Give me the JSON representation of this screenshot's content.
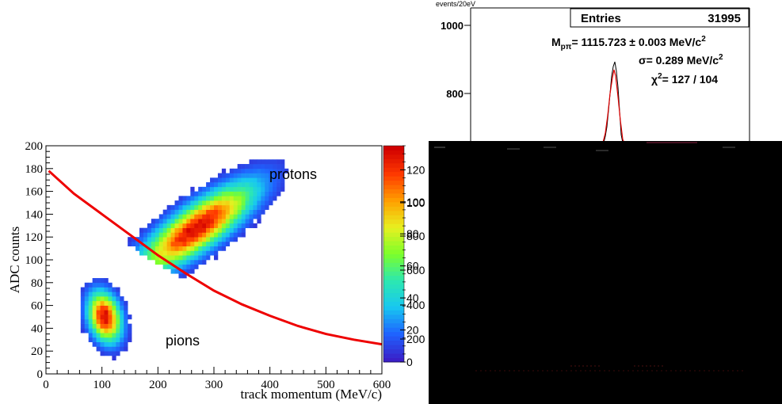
{
  "chart_data": [
    {
      "type": "heatmap",
      "xlabel": "track momentum (MeV/c)",
      "ylabel": "ADC counts",
      "xlim": [
        0,
        600
      ],
      "ylim": [
        0,
        200
      ],
      "xticks": [
        "0",
        "100",
        "200",
        "300",
        "400",
        "500",
        "600"
      ],
      "yticks": [
        "0",
        "20",
        "40",
        "60",
        "80",
        "100",
        "120",
        "140",
        "160",
        "180",
        "200"
      ],
      "annotations": [
        "protons",
        "pions"
      ],
      "colorbar": {
        "range": [
          0,
          135
        ],
        "ticks": [
          "0",
          "20",
          "40",
          "60",
          "80",
          "100",
          "120"
        ],
        "ticks_visible_over_occlusion": [
          "200",
          "400",
          "600",
          "800",
          "100"
        ]
      },
      "colorscale": [
        "#3a1fc8",
        "#1e64ff",
        "#18c8f0",
        "#2ce8b0",
        "#7cff2a",
        "#e8f020",
        "#ffa000",
        "#ff3a00",
        "#d00000"
      ],
      "clusters": [
        {
          "name": "protons",
          "center": [
            270,
            128
          ],
          "peak": 135
        },
        {
          "name": "pions",
          "center": [
            105,
            50
          ],
          "peak": 135
        }
      ],
      "cut_curve": {
        "color": "#ee0000",
        "points": [
          [
            5,
            178
          ],
          [
            50,
            158
          ],
          [
            100,
            140
          ],
          [
            150,
            122
          ],
          [
            200,
            104
          ],
          [
            250,
            88
          ],
          [
            300,
            73
          ],
          [
            350,
            61
          ],
          [
            400,
            51
          ],
          [
            450,
            42
          ],
          [
            500,
            35
          ],
          [
            550,
            30
          ],
          [
            600,
            26
          ]
        ]
      }
    },
    {
      "type": "line",
      "ylabel": "events/20eV",
      "yticks": [
        "1000",
        "800"
      ],
      "stats": {
        "entries_label": "Entries",
        "entries_value": "31995",
        "mass_label": "M",
        "mass_sub": "pπ",
        "mass_value": "= 1115.723 ± 0.003 MeV/c",
        "mass_exp": "2",
        "sigma_text": "σ= 0.289 MeV/c",
        "sigma_exp": "2",
        "chi_label": "χ",
        "chi_exp": "2",
        "chi_value": "= 127 / 104"
      },
      "peak": {
        "y": 880
      },
      "occlusion_color": "#000000"
    }
  ]
}
